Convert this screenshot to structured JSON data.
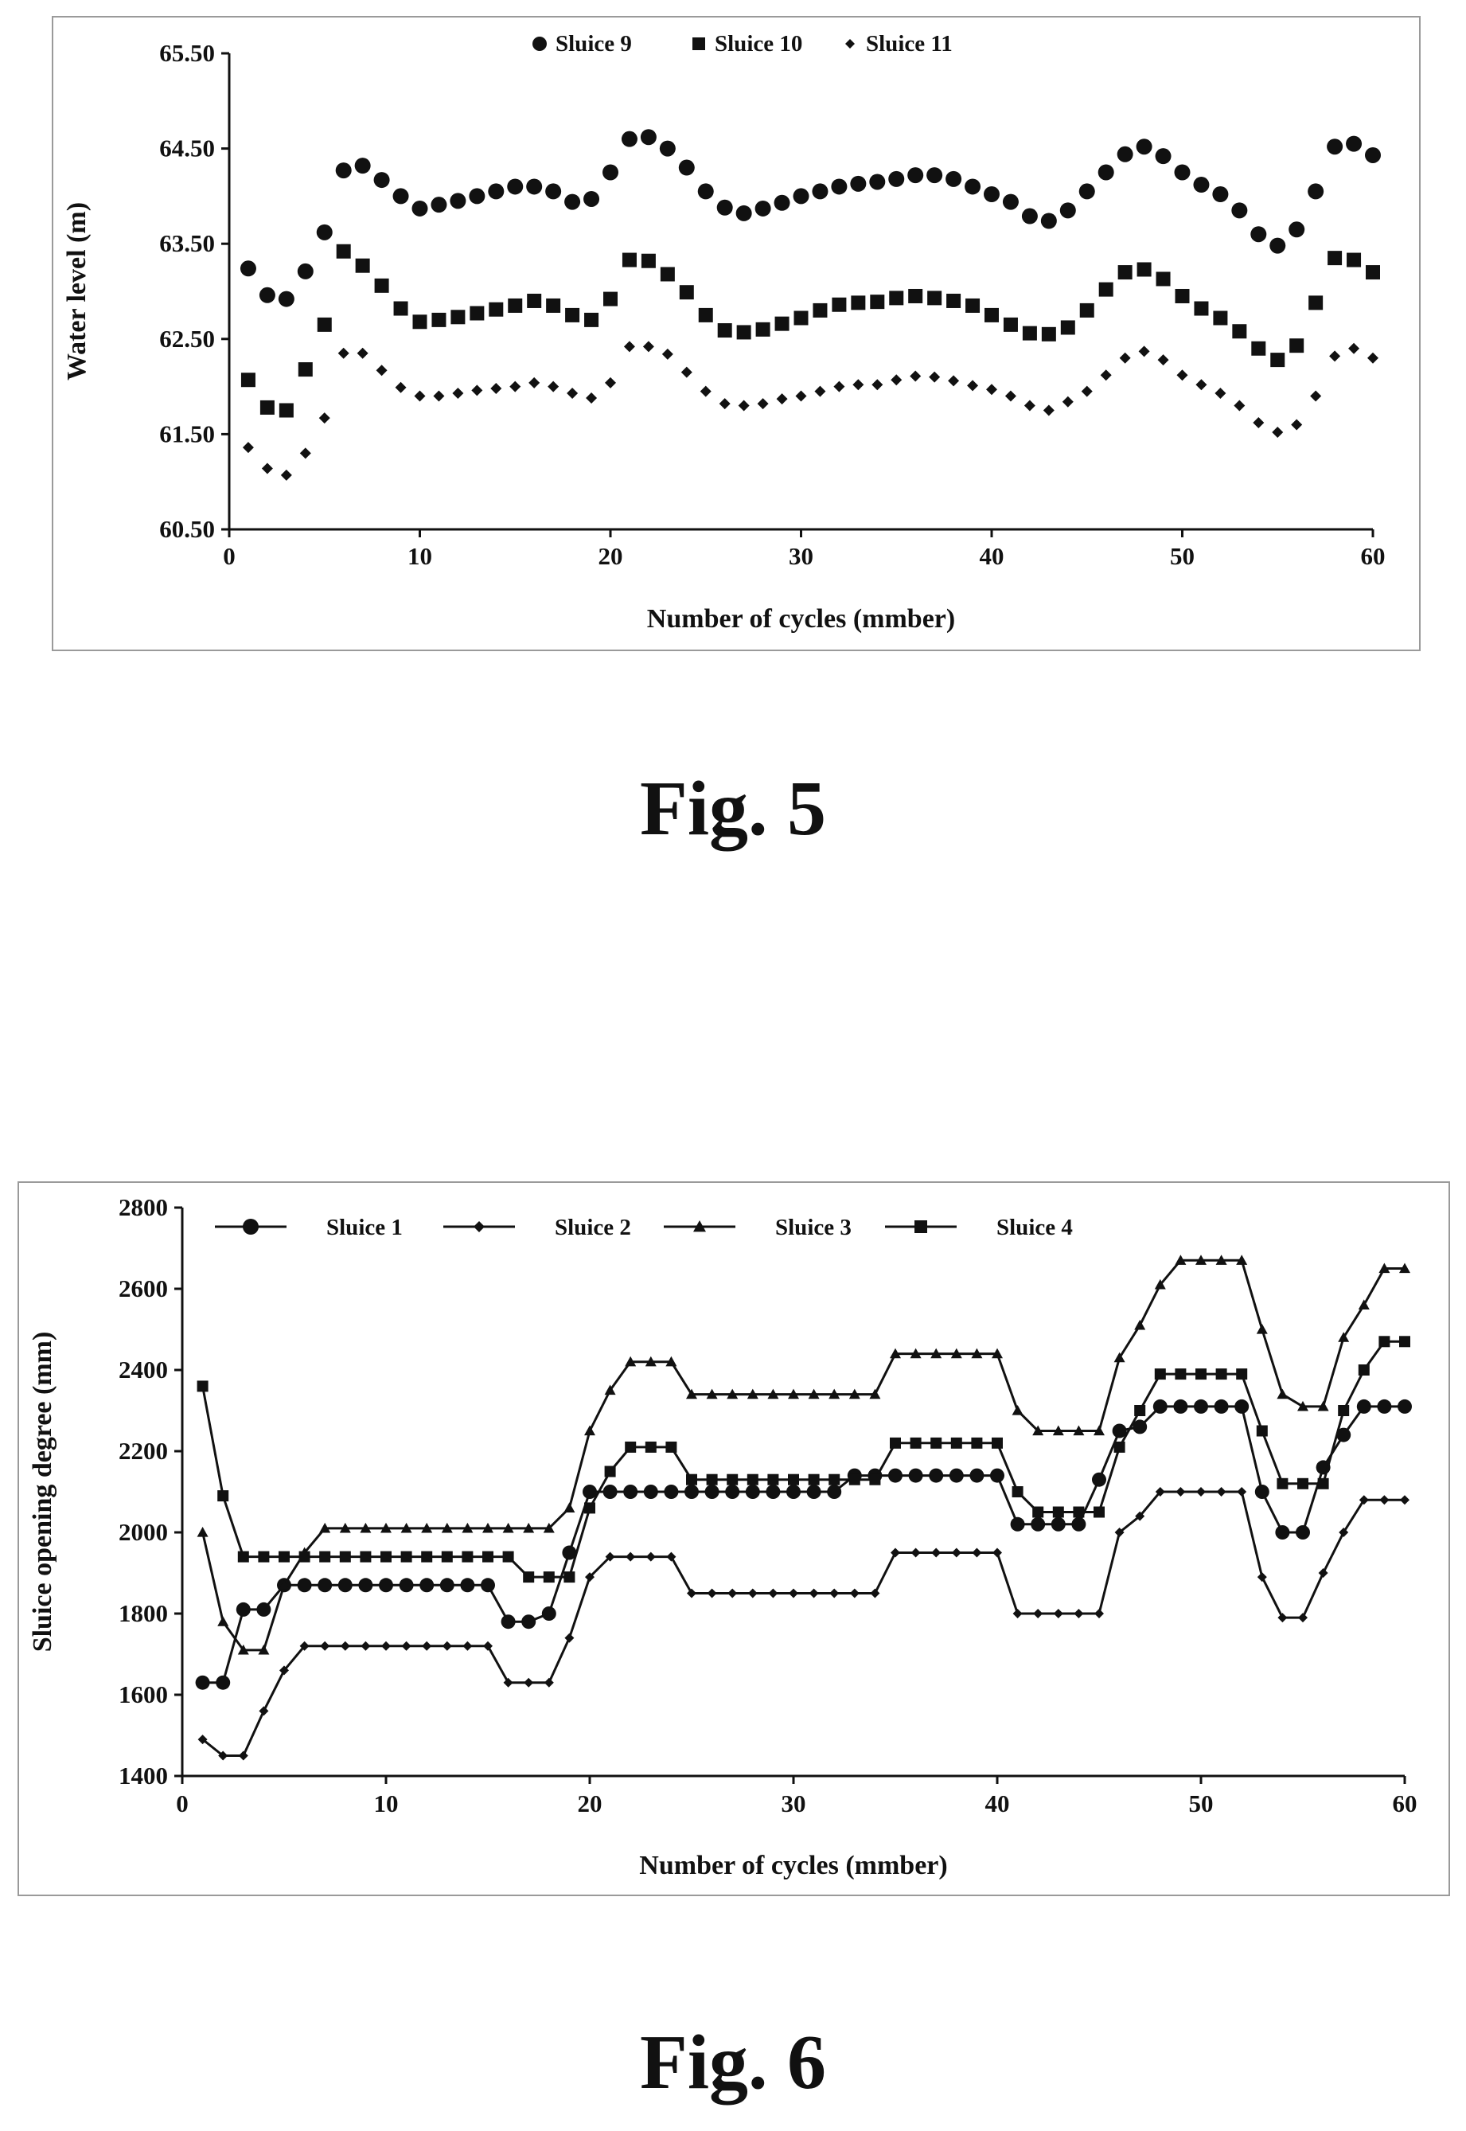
{
  "figures": [
    {
      "caption": "Fig. 5"
    },
    {
      "caption": "Fig. 6"
    }
  ],
  "chart_data": [
    {
      "type": "scatter",
      "xlabel": "Number of cycles (mmber)",
      "ylabel": "Water level (m)",
      "xlim": [
        0,
        60
      ],
      "ylim": [
        60.5,
        65.5
      ],
      "xticks": [
        "0",
        "10",
        "20",
        "30",
        "40",
        "50",
        "60"
      ],
      "yticks": [
        "60.50",
        "61.50",
        "62.50",
        "63.50",
        "64.50",
        "65.50"
      ],
      "legend_position": "top",
      "grid": false,
      "x": [
        1,
        2,
        3,
        4,
        5,
        6,
        7,
        8,
        9,
        10,
        11,
        12,
        13,
        14,
        15,
        16,
        17,
        18,
        19,
        20,
        21,
        22,
        23,
        24,
        25,
        26,
        27,
        28,
        29,
        30,
        31,
        32,
        33,
        34,
        35,
        36,
        37,
        38,
        39,
        40,
        41,
        42,
        43,
        44,
        45,
        46,
        47,
        48,
        49,
        50,
        51,
        52,
        53,
        54,
        55,
        56,
        57,
        58,
        59,
        60
      ],
      "series": [
        {
          "name": "Sluice 9",
          "marker": "circle",
          "values": [
            63.24,
            62.96,
            62.92,
            63.21,
            63.62,
            64.27,
            64.32,
            64.17,
            64.0,
            63.87,
            63.91,
            63.95,
            64.0,
            64.05,
            64.1,
            64.1,
            64.05,
            63.94,
            63.97,
            64.25,
            64.6,
            64.62,
            64.5,
            64.3,
            64.05,
            63.88,
            63.82,
            63.87,
            63.93,
            64.0,
            64.05,
            64.1,
            64.13,
            64.15,
            64.18,
            64.22,
            64.22,
            64.18,
            64.1,
            64.02,
            63.94,
            63.79,
            63.74,
            63.85,
            64.05,
            64.25,
            64.44,
            64.52,
            64.42,
            64.25,
            64.12,
            64.02,
            63.85,
            63.6,
            63.48,
            63.65,
            64.05,
            64.52,
            64.55,
            64.43
          ]
        },
        {
          "name": "Sluice 10",
          "marker": "square",
          "values": [
            62.07,
            61.78,
            61.75,
            62.18,
            62.65,
            63.42,
            63.27,
            63.06,
            62.82,
            62.68,
            62.7,
            62.73,
            62.77,
            62.81,
            62.85,
            62.9,
            62.85,
            62.75,
            62.7,
            62.92,
            63.33,
            63.32,
            63.18,
            62.99,
            62.75,
            62.59,
            62.57,
            62.6,
            62.66,
            62.72,
            62.8,
            62.86,
            62.88,
            62.89,
            62.93,
            62.95,
            62.93,
            62.9,
            62.85,
            62.75,
            62.65,
            62.56,
            62.55,
            62.62,
            62.8,
            63.02,
            63.2,
            63.23,
            63.13,
            62.95,
            62.82,
            62.72,
            62.58,
            62.4,
            62.28,
            62.43,
            62.88,
            63.35,
            63.33,
            63.2
          ]
        },
        {
          "name": "Sluice 11",
          "marker": "diamond",
          "values": [
            61.36,
            61.14,
            61.07,
            61.3,
            61.67,
            62.35,
            62.35,
            62.17,
            61.99,
            61.9,
            61.9,
            61.93,
            61.96,
            61.98,
            62.0,
            62.04,
            62.0,
            61.93,
            61.88,
            62.04,
            62.42,
            62.42,
            62.34,
            62.15,
            61.95,
            61.82,
            61.8,
            61.82,
            61.87,
            61.9,
            61.95,
            62.0,
            62.02,
            62.02,
            62.07,
            62.11,
            62.1,
            62.06,
            62.01,
            61.97,
            61.9,
            61.8,
            61.75,
            61.84,
            61.95,
            62.12,
            62.3,
            62.37,
            62.28,
            62.12,
            62.02,
            61.93,
            61.8,
            61.62,
            61.52,
            61.6,
            61.9,
            62.32,
            62.4,
            62.3
          ]
        }
      ]
    },
    {
      "type": "line",
      "xlabel": "Number of cycles (mmber)",
      "ylabel": "Sluice opening degree (mm)",
      "xlim": [
        0,
        60
      ],
      "ylim": [
        1400,
        2800
      ],
      "xticks": [
        "0",
        "10",
        "20",
        "30",
        "40",
        "50",
        "60"
      ],
      "yticks": [
        "1400",
        "1600",
        "1800",
        "2000",
        "2200",
        "2400",
        "2600",
        "2800"
      ],
      "legend_position": "top",
      "grid": false,
      "x": [
        1,
        2,
        3,
        4,
        5,
        6,
        7,
        8,
        9,
        10,
        11,
        12,
        13,
        14,
        15,
        16,
        17,
        18,
        19,
        20,
        21,
        22,
        23,
        24,
        25,
        26,
        27,
        28,
        29,
        30,
        31,
        32,
        33,
        34,
        35,
        36,
        37,
        38,
        39,
        40,
        41,
        42,
        43,
        44,
        45,
        46,
        47,
        48,
        49,
        50,
        51,
        52,
        53,
        54,
        55,
        56,
        57,
        58,
        59,
        60
      ],
      "series": [
        {
          "name": "Sluice 1",
          "marker": "circle",
          "values": [
            1630,
            1630,
            1810,
            1810,
            1870,
            1870,
            1870,
            1870,
            1870,
            1870,
            1870,
            1870,
            1870,
            1870,
            1870,
            1780,
            1780,
            1800,
            1950,
            2100,
            2100,
            2100,
            2100,
            2100,
            2100,
            2100,
            2100,
            2100,
            2100,
            2100,
            2100,
            2100,
            2140,
            2140,
            2140,
            2140,
            2140,
            2140,
            2140,
            2140,
            2020,
            2020,
            2020,
            2020,
            2130,
            2250,
            2260,
            2310,
            2310,
            2310,
            2310,
            2310,
            2100,
            2000,
            2000,
            2160,
            2240,
            2310,
            2310,
            2310
          ]
        },
        {
          "name": "Sluice 2",
          "marker": "diamond",
          "values": [
            1490,
            1450,
            1450,
            1560,
            1660,
            1720,
            1720,
            1720,
            1720,
            1720,
            1720,
            1720,
            1720,
            1720,
            1720,
            1630,
            1630,
            1630,
            1740,
            1890,
            1940,
            1940,
            1940,
            1940,
            1850,
            1850,
            1850,
            1850,
            1850,
            1850,
            1850,
            1850,
            1850,
            1850,
            1950,
            1950,
            1950,
            1950,
            1950,
            1950,
            1800,
            1800,
            1800,
            1800,
            1800,
            2000,
            2040,
            2100,
            2100,
            2100,
            2100,
            2100,
            1890,
            1790,
            1790,
            1900,
            2000,
            2080,
            2080,
            2080
          ]
        },
        {
          "name": "Sluice 3",
          "marker": "triangle",
          "values": [
            2000,
            1780,
            1710,
            1710,
            1870,
            1950,
            2010,
            2010,
            2010,
            2010,
            2010,
            2010,
            2010,
            2010,
            2010,
            2010,
            2010,
            2010,
            2060,
            2250,
            2350,
            2420,
            2420,
            2420,
            2340,
            2340,
            2340,
            2340,
            2340,
            2340,
            2340,
            2340,
            2340,
            2340,
            2440,
            2440,
            2440,
            2440,
            2440,
            2440,
            2300,
            2250,
            2250,
            2250,
            2250,
            2430,
            2510,
            2610,
            2670,
            2670,
            2670,
            2670,
            2500,
            2340,
            2310,
            2310,
            2480,
            2560,
            2650,
            2650
          ]
        },
        {
          "name": "Sluice 4",
          "marker": "square",
          "values": [
            2360,
            2090,
            1940,
            1940,
            1940,
            1940,
            1940,
            1940,
            1940,
            1940,
            1940,
            1940,
            1940,
            1940,
            1940,
            1940,
            1890,
            1890,
            1890,
            2060,
            2150,
            2210,
            2210,
            2210,
            2130,
            2130,
            2130,
            2130,
            2130,
            2130,
            2130,
            2130,
            2130,
            2130,
            2220,
            2220,
            2220,
            2220,
            2220,
            2220,
            2100,
            2050,
            2050,
            2050,
            2050,
            2210,
            2300,
            2390,
            2390,
            2390,
            2390,
            2390,
            2250,
            2120,
            2120,
            2120,
            2300,
            2400,
            2470,
            2470
          ]
        }
      ]
    }
  ]
}
